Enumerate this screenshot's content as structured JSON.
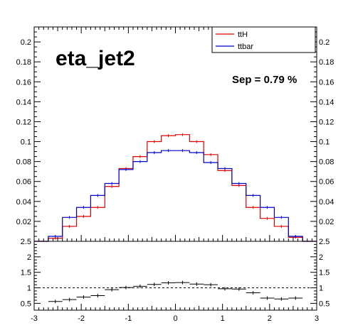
{
  "chart_data": [
    {
      "type": "step",
      "title": "eta_jet2",
      "annotation": "Sep = 0.79 %",
      "bin_edges": [
        -3.0,
        -2.7,
        -2.4,
        -2.1,
        -1.8,
        -1.5,
        -1.2,
        -0.9,
        -0.6,
        -0.3,
        0.0,
        0.3,
        0.6,
        0.9,
        1.2,
        1.5,
        1.8,
        2.1,
        2.4,
        2.7,
        3.0
      ],
      "ylim": [
        0,
        0.215
      ],
      "xlim": [
        -3,
        3
      ],
      "yticks": [
        "0.02",
        "0.04",
        "0.06",
        "0.08",
        "0.1",
        "0.12",
        "0.14",
        "0.16",
        "0.18",
        "0.2"
      ],
      "series": [
        {
          "name": "ttH",
          "color": "#e00000",
          "values": [
            0,
            0.003,
            0.015,
            0.025,
            0.034,
            0.055,
            0.073,
            0.085,
            0.1,
            0.106,
            0.107,
            0.1,
            0.087,
            0.071,
            0.056,
            0.034,
            0.023,
            0.015,
            0.004,
            0
          ]
        },
        {
          "name": "ttbar",
          "color": "#0000cc",
          "values": [
            0,
            0.005,
            0.024,
            0.034,
            0.046,
            0.058,
            0.072,
            0.08,
            0.089,
            0.091,
            0.091,
            0.089,
            0.079,
            0.073,
            0.058,
            0.046,
            0.034,
            0.024,
            0.005,
            0
          ]
        }
      ],
      "legend": {
        "position": "top-right",
        "entries": [
          "ttH",
          "ttbar"
        ]
      }
    },
    {
      "type": "ratio",
      "xlim": [
        -3,
        3
      ],
      "ylim": [
        0.28,
        2.5
      ],
      "yticks": [
        "0.5",
        "1",
        "1.5",
        "2",
        "2.5"
      ],
      "xticks": [
        "-3",
        "-2",
        "-1",
        "0",
        "1",
        "2",
        "3"
      ],
      "reference_line": 1,
      "x": [
        -2.55,
        -2.25,
        -1.95,
        -1.65,
        -1.35,
        -1.05,
        -0.75,
        -0.45,
        -0.15,
        0.15,
        0.45,
        0.75,
        1.05,
        1.35,
        1.65,
        1.95,
        2.25,
        2.55
      ],
      "values": [
        0.56,
        0.62,
        0.7,
        0.75,
        0.94,
        1.01,
        1.05,
        1.11,
        1.16,
        1.17,
        1.12,
        1.1,
        0.97,
        0.96,
        0.84,
        0.67,
        0.64,
        0.67
      ]
    }
  ]
}
